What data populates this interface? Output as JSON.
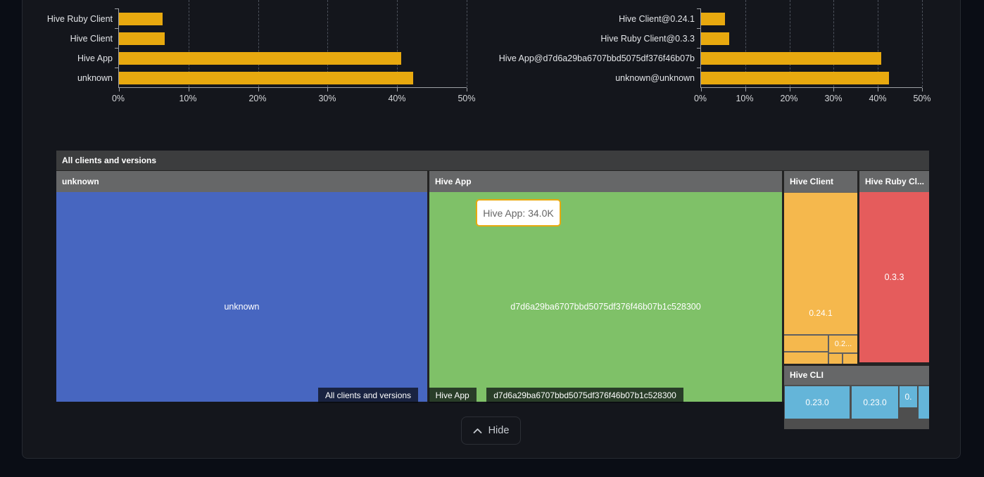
{
  "colors": {
    "bar": "#E8A90F",
    "treemap_unknown": "#4766C0",
    "treemap_hive_app": "#7FC168",
    "treemap_hive_client": "#F5B84D",
    "treemap_hive_ruby_client": "#E55C5C",
    "treemap_hive_cli": "#64B5D9",
    "tooltip_border": "#E8A90F",
    "breadcrumb_arrow_1": "#4766C0",
    "breadcrumb_arrow_2": "#7FC168"
  },
  "chart_data": [
    {
      "type": "bar",
      "orientation": "horizontal",
      "title": "",
      "categories": [
        "Hive Ruby Client",
        "Hive Client",
        "Hive App",
        "unknown"
      ],
      "values": [
        6.3,
        6.6,
        40.6,
        42.3
      ],
      "unit": "%",
      "xlim": [
        0,
        50
      ],
      "x_ticks": [
        "0%",
        "10%",
        "20%",
        "30%",
        "40%",
        "50%"
      ],
      "grid": "dashed-vertical",
      "legend": "none",
      "bar_color": "#E8A90F"
    },
    {
      "type": "bar",
      "orientation": "horizontal",
      "title": "",
      "categories": [
        "Hive Client@0.24.1",
        "Hive Ruby Client@0.3.3",
        "Hive App@d7d6a29ba6707bbd5075df376f46b07b",
        "unknown@unknown"
      ],
      "values": [
        5.4,
        6.3,
        40.8,
        42.5
      ],
      "unit": "%",
      "xlim": [
        0,
        50
      ],
      "x_ticks": [
        "0%",
        "10%",
        "20%",
        "30%",
        "40%",
        "50%"
      ],
      "grid": "dashed-vertical",
      "legend": "none",
      "bar_color": "#E8A90F"
    }
  ],
  "treemap": {
    "title": "All clients and versions",
    "tooltip": "Hive App: 34.0K",
    "sections": {
      "unknown": {
        "name": "unknown",
        "label": "unknown"
      },
      "hive_app": {
        "name": "Hive App",
        "label": "d7d6a29ba6707bbd5075df376f46b07b1c528300"
      },
      "hive_client": {
        "name": "Hive Client",
        "label": "0.24.1",
        "sub_label": "0.2..."
      },
      "hive_ruby": {
        "name": "Hive Ruby Cl...",
        "label": "0.3.3"
      },
      "hive_cli": {
        "name": "Hive CLI",
        "blocks": [
          "0.23.0",
          "0.23.0",
          "0."
        ]
      }
    },
    "breadcrumb": {
      "items": [
        "All clients and versions",
        "Hive App",
        "d7d6a29ba6707bbd5075df376f46b07b1c528300"
      ]
    }
  },
  "footer": {
    "hide_label": "Hide"
  }
}
